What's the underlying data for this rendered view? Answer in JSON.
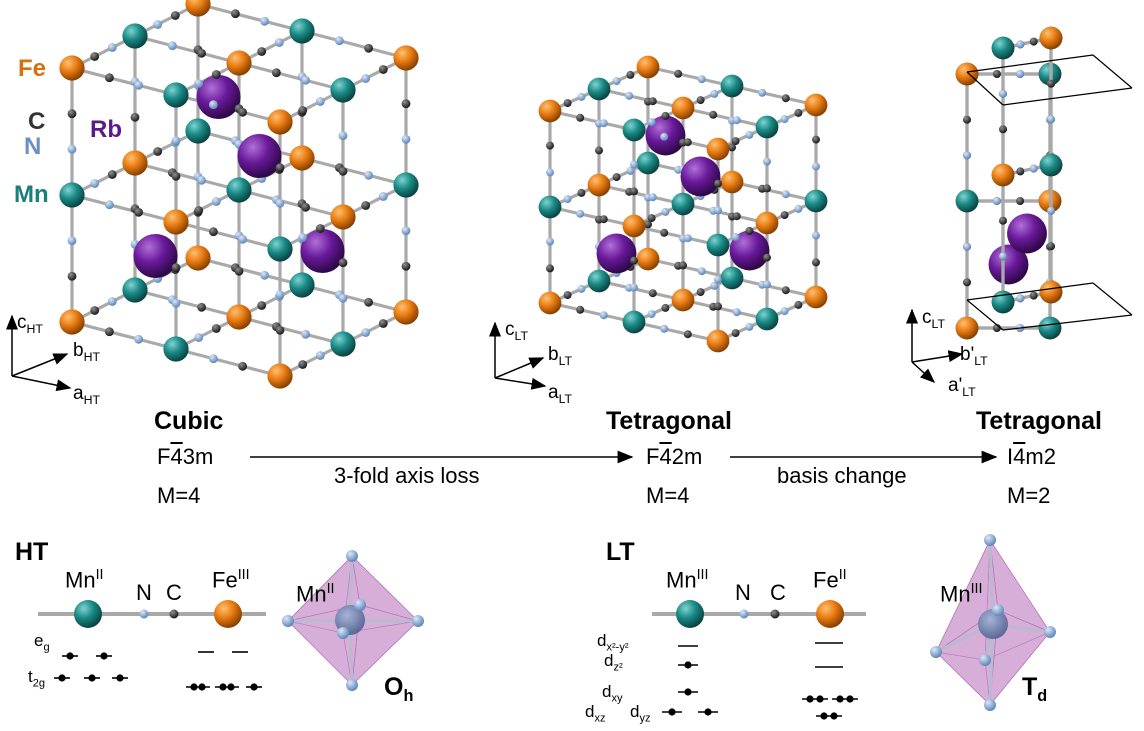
{
  "colors": {
    "fe": "#e87b12",
    "mn": "#1a8a86",
    "c": "#3a3a3a",
    "n": "#8aaed6",
    "rb": "#6a1a9a",
    "bond": "#aaaaaa",
    "octa": "#c58cc8",
    "fe_label": "#d9700b",
    "mn_label": "#1a7f7a",
    "rb_label": "#5a1a8a",
    "n_label": "#6a8fc0",
    "c_label": "#333333"
  },
  "legend": {
    "fe": "Fe",
    "c": "C",
    "n": "N",
    "mn": "Mn",
    "rb": "Rb"
  },
  "axes": {
    "ht": {
      "c": "c",
      "c_sub": "HT",
      "b": "b",
      "b_sub": "HT",
      "a": "a",
      "a_sub": "HT"
    },
    "lt": {
      "c": "c",
      "c_sub": "LT",
      "b": "b",
      "b_sub": "LT",
      "a": "a",
      "a_sub": "LT"
    },
    "lt2": {
      "c": "c",
      "c_sub": "LT",
      "b": "b'",
      "b_sub": "LT",
      "a": "a'",
      "a_sub": "LT"
    }
  },
  "phases": [
    {
      "name": "Cubic",
      "group_pre": "F",
      "group_bar": "4",
      "group_post": "3m",
      "m": "M=4"
    },
    {
      "name": "Tetragonal",
      "group_pre": "F",
      "group_bar": "4",
      "group_post": "2m",
      "m": "M=4"
    },
    {
      "name": "Tetragonal",
      "group_pre": "I",
      "group_bar": "4",
      "group_post": "m2",
      "m": "M=2"
    }
  ],
  "transitions": [
    "3-fold axis loss",
    "basis change"
  ],
  "ht_panel": {
    "title": "HT",
    "mn": "Mn",
    "mn_ox": "II",
    "n": "N",
    "c": "C",
    "fe": "Fe",
    "fe_ox": "III",
    "eg": "e",
    "eg_sub": "g",
    "t2g": "t",
    "t2g_sub": "2g",
    "octa_mn": "Mn",
    "octa_ox": "II",
    "sym": "O",
    "sym_sub": "h"
  },
  "lt_panel": {
    "title": "LT",
    "mn": "Mn",
    "mn_ox": "III",
    "n": "N",
    "c": "C",
    "fe": "Fe",
    "fe_ox": "II",
    "dx2y2": "d",
    "dx2y2_sub": "x²-y²",
    "dz2": "d",
    "dz2_sub": "z²",
    "dxy": "d",
    "dxy_sub": "xy",
    "dxz": "d",
    "dxz_sub": "xz",
    "dyz": "d",
    "dyz_sub": "yz",
    "octa_mn": "Mn",
    "octa_ox": "III",
    "sym": "T",
    "sym_sub": "d"
  }
}
